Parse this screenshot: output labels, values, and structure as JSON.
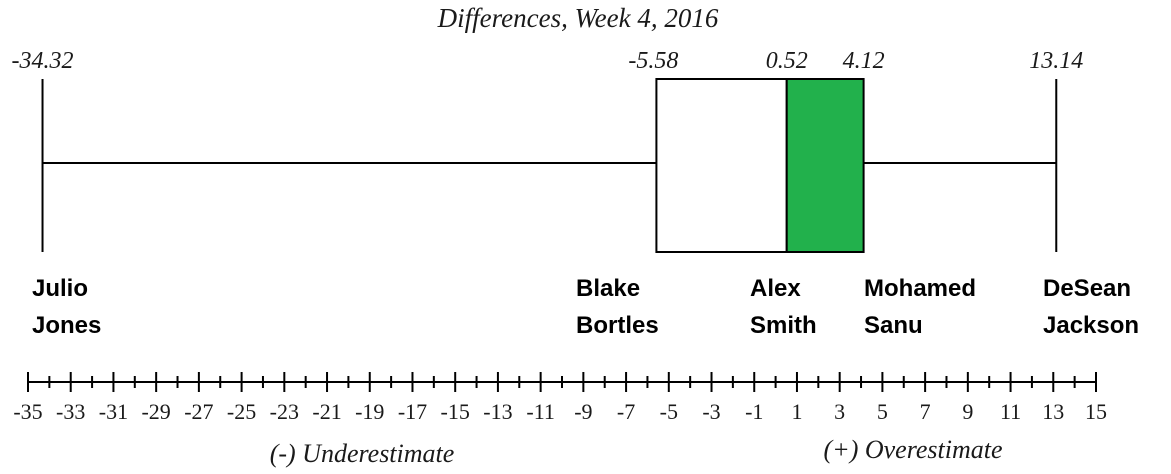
{
  "chart_data": {
    "type": "boxplot",
    "title": "Differences, Week 4, 2016",
    "box": {
      "min": -34.32,
      "q1": -5.58,
      "median": 0.52,
      "q3": 4.12,
      "max": 13.14,
      "upper_box_color": "#22b14c"
    },
    "value_labels": [
      "-34.32",
      "-5.58",
      "0.52",
      "4.12",
      "13.14"
    ],
    "players": [
      {
        "line1": "Julio",
        "line2": "Jones",
        "value": -34.32
      },
      {
        "line1": "Blake",
        "line2": "Bortles",
        "value": -5.58
      },
      {
        "line1": "Alex",
        "line2": "Smith",
        "value": 0.52
      },
      {
        "line1": "Mohamed",
        "line2": "Sanu",
        "value": 4.12
      },
      {
        "line1": "DeSean",
        "line2": "Jackson",
        "value": 13.14
      }
    ],
    "axis": {
      "xlim": [
        -35,
        15
      ],
      "minor_step": 1,
      "tick_labels": [
        "-35",
        "-33",
        "-31",
        "-29",
        "-27",
        "-25",
        "-23",
        "-21",
        "-19",
        "-17",
        "-15",
        "-13",
        "-11",
        "-9",
        "-7",
        "-5",
        "-3",
        "-1",
        "1",
        "3",
        "5",
        "7",
        "9",
        "11",
        "13",
        "15"
      ]
    },
    "xlabel_left": "(-) Underestimate",
    "xlabel_right": "(+) Overestimate"
  }
}
